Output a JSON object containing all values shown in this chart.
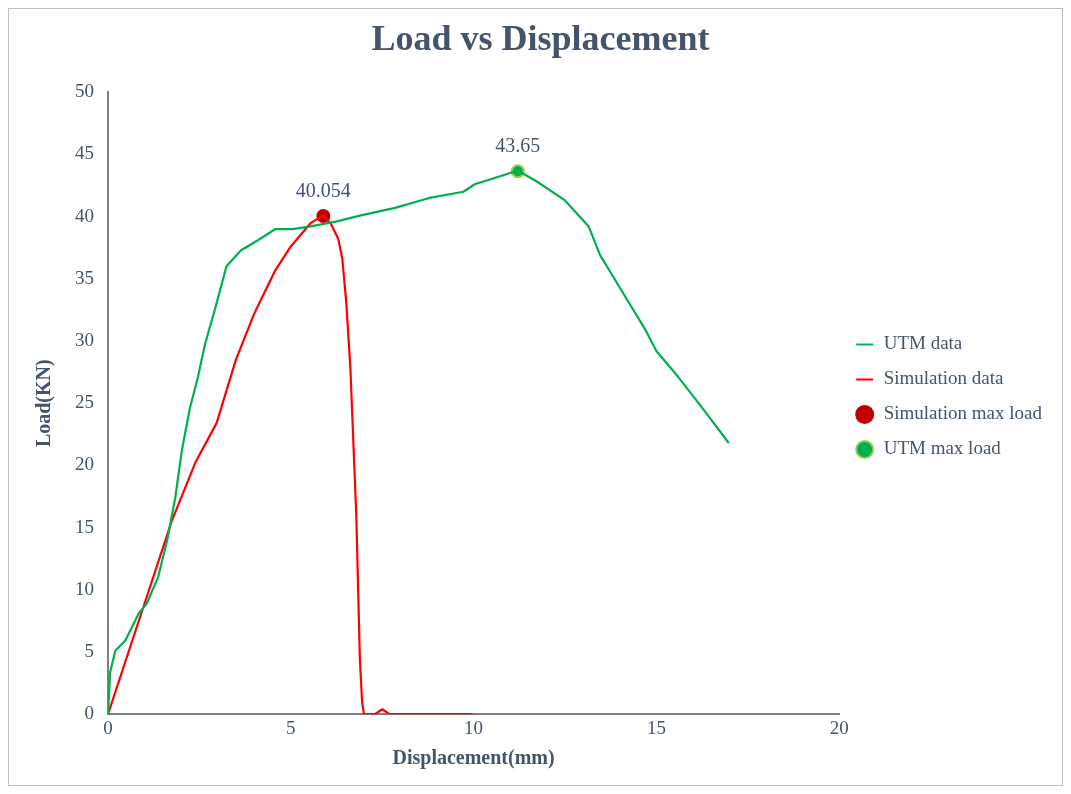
{
  "chart_data": {
    "type": "line",
    "title": "Load vs Displacement",
    "xlabel": "Displacement(mm)",
    "ylabel": "Load(KN)",
    "xlim": [
      0,
      20
    ],
    "xticks": [
      0,
      5,
      10,
      15,
      20
    ],
    "ylim": [
      0,
      50
    ],
    "yticks": [
      0,
      5,
      10,
      15,
      20,
      25,
      30,
      35,
      40,
      45,
      50
    ],
    "grid": false,
    "legend": "right",
    "series": [
      {
        "name": "UTM data",
        "color": "#00b050",
        "marker": "none",
        "x": [
          0,
          0.06,
          0.2,
          0.47,
          0.84,
          1.06,
          1.37,
          1.62,
          1.84,
          2.02,
          2.24,
          2.46,
          2.65,
          2.93,
          3.24,
          3.64,
          4.1,
          4.58,
          5.05,
          5.5,
          6.23,
          6.92,
          7.85,
          8.79,
          9.72,
          10.03,
          11.21,
          11.74,
          12.5,
          13.15,
          13.46,
          14.08,
          14.7,
          15.0,
          15.6,
          16.26,
          16.98
        ],
        "values": [
          0,
          3.4,
          5.1,
          5.9,
          8.1,
          8.9,
          11,
          14,
          17.4,
          21.2,
          24.6,
          27.1,
          29.7,
          32.6,
          36,
          37.3,
          38.1,
          39,
          39,
          39.2,
          39.6,
          40.1,
          40.7,
          41.5,
          42,
          42.6,
          43.7,
          42.8,
          41.3,
          39.2,
          36.9,
          33.9,
          30.9,
          29.2,
          27.1,
          24.6,
          21.8
        ]
      },
      {
        "name": "Simulation data",
        "color": "#ff0000",
        "marker": "none",
        "x": [
          0,
          1,
          1.74,
          2.4,
          2.97,
          3.5,
          4,
          4.58,
          5,
          5.55,
          5.89,
          6.1,
          6.3,
          6.41,
          6.52,
          6.63,
          6.79,
          6.89,
          6.95,
          7.0,
          7.3,
          7.5,
          7.7,
          9.97
        ],
        "values": [
          0,
          8.9,
          15.5,
          20.3,
          23.4,
          28.5,
          32.2,
          35.7,
          37.6,
          39.5,
          40.1,
          39.4,
          38.2,
          36.6,
          33,
          27.8,
          16.1,
          4.4,
          1,
          0,
          0,
          0.4,
          0,
          0
        ]
      },
      {
        "name": "Simulation max load",
        "type": "scatter",
        "color": "#c00000",
        "marker": "circle",
        "x": [
          5.89
        ],
        "values": [
          40.054
        ],
        "value_labels": [
          "40.054"
        ]
      },
      {
        "name": "UTM max load",
        "type": "scatter",
        "color": "#00b050",
        "marker": "circle",
        "x": [
          11.21
        ],
        "values": [
          43.65
        ],
        "value_labels": [
          "43.65"
        ]
      }
    ]
  }
}
